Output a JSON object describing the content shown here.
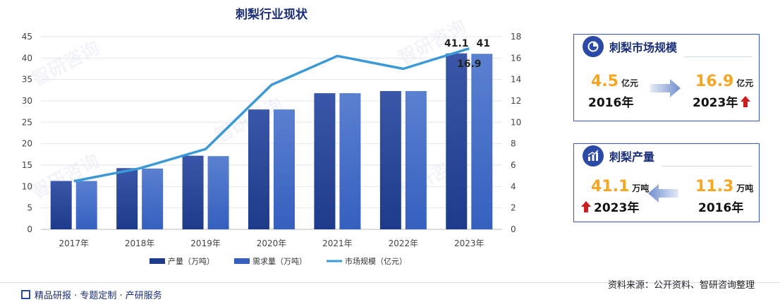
{
  "chart_data": {
    "type": "bar",
    "title": "刺梨行业现状",
    "categories": [
      "2017年",
      "2018年",
      "2019年",
      "2020年",
      "2021年",
      "2022年",
      "2023年"
    ],
    "series": [
      {
        "name": "产量（万吨）",
        "type": "bar",
        "axis": "left",
        "values": [
          11.3,
          14.3,
          17.2,
          28.0,
          31.8,
          32.3,
          41.1
        ],
        "color": "#1e3a8a"
      },
      {
        "name": "需求量（万吨）",
        "type": "bar",
        "axis": "left",
        "values": [
          11.3,
          14.2,
          17.1,
          28.0,
          31.8,
          32.3,
          41.0
        ],
        "color": "#3560bf"
      },
      {
        "name": "市场规模（亿元）",
        "type": "line",
        "axis": "right",
        "values": [
          4.5,
          5.7,
          7.5,
          13.5,
          16.2,
          15.0,
          16.9
        ],
        "color": "#3b9ad6"
      }
    ],
    "y_left": {
      "min": 0,
      "max": 45,
      "ticks": [
        "0",
        "5",
        "10",
        "15",
        "20",
        "25",
        "30",
        "35",
        "40",
        "45"
      ]
    },
    "y_right": {
      "min": 0,
      "max": 18,
      "ticks": [
        "0",
        "2",
        "4",
        "6",
        "8",
        "10",
        "12",
        "14",
        "16",
        "18"
      ]
    },
    "data_labels": {
      "prod_2023": "41.1",
      "demand_2023": "41",
      "market_2023": "16.9"
    },
    "legend_placement": "bottom",
    "grid": true
  },
  "market_card": {
    "title": "刺梨市场规模",
    "from_value": "4.5",
    "from_unit": "亿元",
    "from_year": "2016年",
    "to_value": "16.9",
    "to_unit": "亿元",
    "to_year": "2023年"
  },
  "production_card": {
    "title": "刺梨产量",
    "left_value": "41.1",
    "left_unit": "万吨",
    "left_year": "2023年",
    "right_value": "11.3",
    "right_unit": "万吨",
    "right_year": "2016年"
  },
  "footer": {
    "left": "精品研报 · 专题定制 · 产研服务",
    "source": "资料来源：公开资料、智研咨询整理"
  },
  "watermark": "智研咨询"
}
